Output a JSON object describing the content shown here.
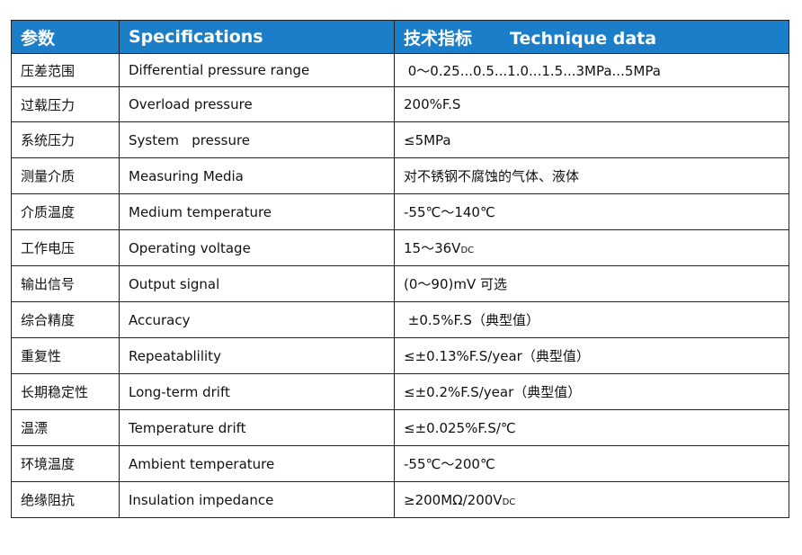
{
  "header": {
    "param": "参数",
    "spec": "Specifications",
    "tech_cn": "技术指标",
    "tech_en": "Technique data"
  },
  "rows": [
    {
      "cn": "压差范围",
      "en": "Differential pressure range",
      "value": " 0～0.25...0.5...1.0...1.5...3MPa...5MPa"
    },
    {
      "cn": "过载压力",
      "en": "Overload pressure",
      "value": "200%F.S"
    },
    {
      "cn": "系统压力",
      "en": "System   pressure",
      "value": "≤5MPa"
    },
    {
      "cn": "测量介质",
      "en": "Measuring Media",
      "value": "对不锈钢不腐蚀的气体、液体"
    },
    {
      "cn": "介质温度",
      "en": "Medium temperature",
      "value": "-55℃～140℃"
    },
    {
      "cn": "工作电压",
      "en": "Operating voltage",
      "value": "15～36V",
      "sub": "DC"
    },
    {
      "cn": "输出信号",
      "en": "Output signal",
      "value": "(0～90)mV 可选"
    },
    {
      "cn": "综合精度",
      "en": "Accuracy",
      "value": " ±0.5%F.S（典型值）"
    },
    {
      "cn": "重复性",
      "en": "Repeatablility",
      "value": "≤±0.13%F.S/year（典型值）"
    },
    {
      "cn": "长期稳定性",
      "en": "Long-term drift",
      "value": "≤±0.2%F.S/year（典型值）"
    },
    {
      "cn": "温漂",
      "en": "Temperature drift",
      "value": "≤±0.025%F.S/℃"
    },
    {
      "cn": "环境温度",
      "en": "Ambient temperature",
      "value": "-55℃～200℃"
    },
    {
      "cn": "绝缘阻抗",
      "en": "Insulation impedance",
      "value": "≥200MΩ/200V",
      "sub": "DC"
    }
  ]
}
